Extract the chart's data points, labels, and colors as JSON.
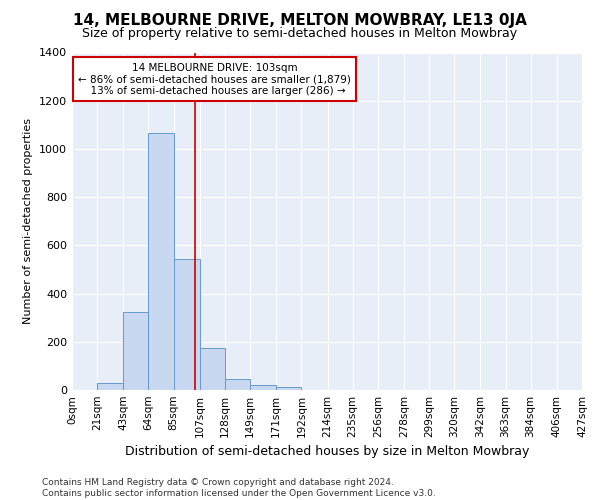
{
  "title": "14, MELBOURNE DRIVE, MELTON MOWBRAY, LE13 0JA",
  "subtitle": "Size of property relative to semi-detached houses in Melton Mowbray",
  "xlabel": "Distribution of semi-detached houses by size in Melton Mowbray",
  "ylabel": "Number of semi-detached properties",
  "footnote1": "Contains HM Land Registry data © Crown copyright and database right 2024.",
  "footnote2": "Contains public sector information licensed under the Open Government Licence v3.0.",
  "bin_edges": [
    0,
    21,
    43,
    64,
    85,
    107,
    128,
    149,
    171,
    192,
    214,
    235,
    256,
    278,
    299,
    320,
    342,
    363,
    384,
    406,
    427
  ],
  "bin_counts": [
    0,
    30,
    325,
    1065,
    545,
    175,
    47,
    22,
    13,
    0,
    0,
    0,
    0,
    0,
    0,
    0,
    0,
    0,
    0,
    0
  ],
  "property_size": 103,
  "pct_smaller": 86,
  "count_smaller": 1879,
  "pct_larger": 13,
  "count_larger": 286,
  "bar_color": "#c8d8f0",
  "bar_edge_color": "#6699cc",
  "vline_color": "#cc0000",
  "fig_background": "#ffffff",
  "plot_background": "#e8eef8",
  "grid_color": "#ffffff",
  "ylim": [
    0,
    1400
  ],
  "yticks": [
    0,
    200,
    400,
    600,
    800,
    1000,
    1200,
    1400
  ],
  "tick_labels": [
    "0sqm",
    "21sqm",
    "43sqm",
    "64sqm",
    "85sqm",
    "107sqm",
    "128sqm",
    "149sqm",
    "171sqm",
    "192sqm",
    "214sqm",
    "235sqm",
    "256sqm",
    "278sqm",
    "299sqm",
    "320sqm",
    "342sqm",
    "363sqm",
    "384sqm",
    "406sqm",
    "427sqm"
  ]
}
